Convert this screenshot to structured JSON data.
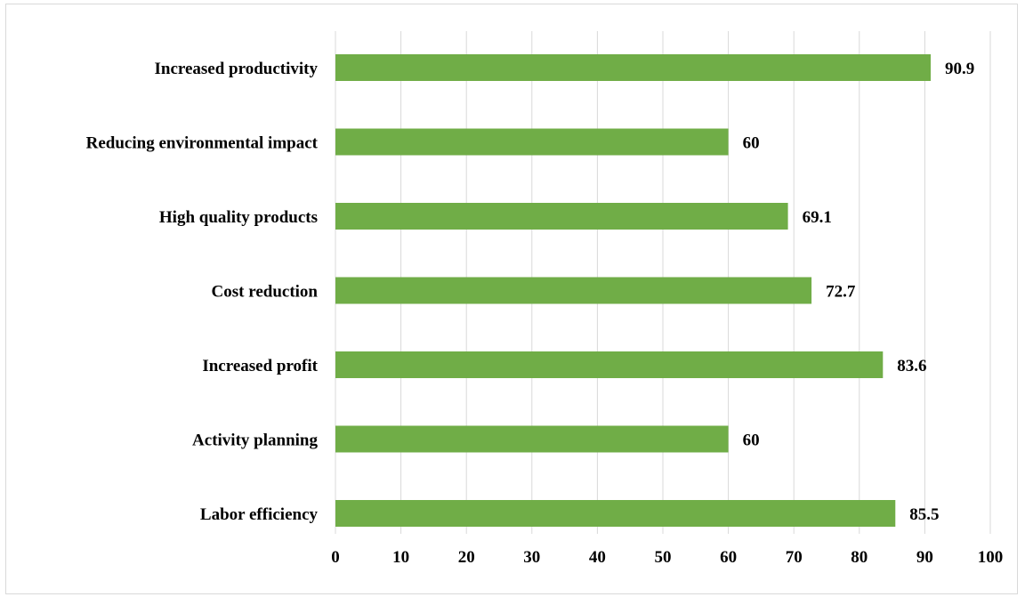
{
  "chart_data": {
    "type": "bar",
    "orientation": "horizontal",
    "title": "",
    "xlabel": "",
    "ylabel": "",
    "categories": [
      "Increased productivity",
      "Reducing environmental impact",
      "High quality products",
      "Cost reduction",
      "Increased profit",
      "Activity planning",
      "Labor efficiency"
    ],
    "values": [
      90.9,
      60,
      69.1,
      72.7,
      83.6,
      60,
      85.5
    ],
    "value_labels": [
      "90.9",
      "60",
      "69.1",
      "72.7",
      "83.6",
      "60",
      "85.5"
    ],
    "xlim": [
      0,
      100
    ],
    "ticks": [
      0,
      10,
      20,
      30,
      40,
      50,
      60,
      70,
      80,
      90,
      100
    ],
    "tick_labels": [
      "0",
      "10",
      "20",
      "30",
      "40",
      "50",
      "60",
      "70",
      "80",
      "90",
      "100"
    ],
    "grid": "vertical",
    "legend": "none",
    "bar_color": "#70ad47",
    "grid_color": "#d9d9d9"
  }
}
